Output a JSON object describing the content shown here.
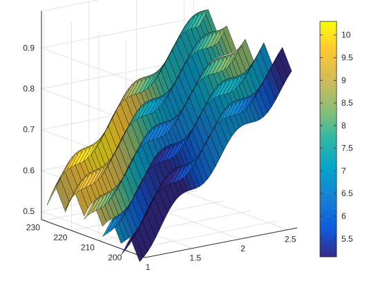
{
  "chart_data": {
    "type": "surface",
    "title": "",
    "xlabel": "",
    "ylabel": "",
    "zlabel": "",
    "x_ticks": [
      "1",
      "1.5",
      "2",
      "2.5"
    ],
    "y_ticks": [
      "230",
      "220",
      "210",
      "200"
    ],
    "z_ticks": [
      "0.9",
      "0.8",
      "0.7",
      "0.6",
      "0.5"
    ],
    "xlim": [
      1,
      2.6
    ],
    "ylim": [
      193,
      231
    ],
    "zlim": [
      0.48,
      0.99
    ],
    "grid": true,
    "colormap": "parula",
    "colorbar": {
      "ticks": [
        "10",
        "9.5",
        "9",
        "8.5",
        "8",
        "7.5",
        "7",
        "6.5",
        "6",
        "5.5"
      ],
      "tick_values": [
        10,
        9.5,
        9,
        8.5,
        8,
        7.5,
        7,
        6.5,
        6,
        5.5
      ],
      "range": [
        5.1,
        10.3
      ],
      "placement": "right"
    },
    "ridges": [
      {
        "color_value": 9.0,
        "z_start": 0.57,
        "z_end": 0.94
      },
      {
        "color_value": 8.4,
        "z_start": 0.56,
        "z_end": 0.93
      },
      {
        "color_value": 7.8,
        "z_start": 0.55,
        "z_end": 0.91
      },
      {
        "color_value": 6.6,
        "z_start": 0.54,
        "z_end": 0.9
      },
      {
        "color_value": 5.9,
        "z_start": 0.53,
        "z_end": 0.89
      }
    ]
  }
}
